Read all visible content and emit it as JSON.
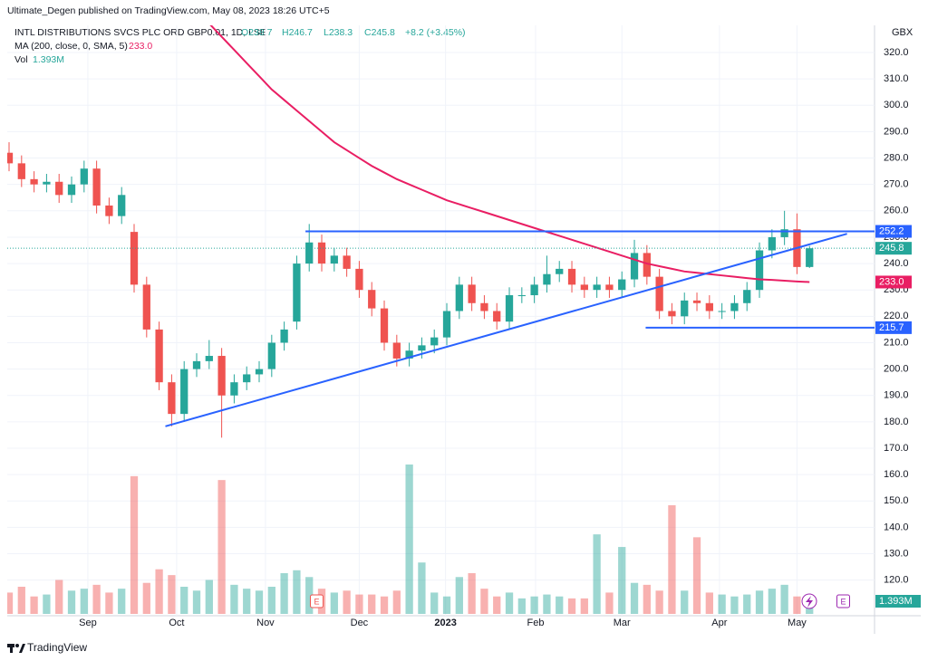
{
  "header": {
    "published": "Ultimate_Degen published on TradingView.com, May 08, 2023 18:26 UTC+5",
    "symbol": "INTL DISTRIBUTIONS SVCS PLC ORD GBP0.01, 1D, LSE",
    "ohlc": [
      "O238.7",
      "H246.7",
      "L238.3",
      "C245.8",
      "+8.2 (+3.45%)"
    ],
    "currency": "GBX",
    "footer": "TradingView"
  },
  "chart_data": {
    "type": "candlestick",
    "x": [
      0,
      1,
      2,
      3,
      4,
      5,
      6,
      7,
      8,
      9,
      10,
      11,
      12,
      13,
      14,
      15,
      16,
      17,
      18,
      19,
      20,
      21,
      22,
      23,
      24,
      25,
      26,
      27,
      28,
      29,
      30,
      31,
      32,
      33,
      34,
      35,
      36,
      37,
      38,
      39,
      40,
      41,
      42,
      43,
      44,
      45,
      46,
      47,
      48,
      49,
      50,
      51,
      52,
      53,
      54,
      55,
      56,
      57,
      58,
      59,
      60,
      61,
      62,
      63,
      64
    ],
    "open": [
      282,
      278,
      272,
      270,
      271,
      266,
      270,
      276,
      262,
      258,
      252,
      232,
      215,
      195,
      183,
      200,
      203,
      205,
      190,
      195,
      198,
      200,
      210,
      218,
      240,
      248,
      240,
      243,
      238,
      230,
      223,
      210,
      204,
      207,
      209,
      212,
      222,
      232,
      225,
      222,
      218,
      228,
      228,
      232,
      236,
      238,
      232,
      230,
      232,
      230,
      234,
      244,
      235,
      222,
      220,
      226,
      225,
      222,
      222,
      225,
      230,
      245,
      250,
      253,
      238.7
    ],
    "high": [
      286,
      281,
      275,
      274,
      274,
      273,
      279,
      279,
      265,
      269,
      255,
      235,
      218,
      198,
      203,
      206,
      211,
      208,
      198,
      201,
      203,
      213,
      218,
      243,
      255,
      251,
      246,
      246,
      241,
      233,
      226,
      213,
      210,
      212,
      215,
      225,
      235,
      235,
      228,
      225,
      231,
      231,
      235,
      243,
      241,
      241,
      235,
      235,
      235,
      237,
      249,
      247,
      238,
      225,
      229,
      229,
      228,
      225,
      228,
      233,
      248,
      253,
      260,
      259,
      246.7
    ],
    "low": [
      275,
      269,
      267,
      267,
      263,
      263,
      267,
      259,
      255,
      255,
      229,
      212,
      192,
      178.3,
      180,
      197,
      200,
      174,
      187,
      192,
      195,
      197,
      207,
      215,
      237,
      237,
      237,
      235,
      227,
      220,
      207,
      201,
      201,
      204,
      206,
      209,
      219,
      222,
      219,
      215,
      215,
      225,
      225,
      229,
      233,
      229,
      227,
      227,
      227,
      227,
      231,
      232,
      219,
      217,
      217,
      222,
      219,
      219,
      219,
      222,
      227,
      242,
      247,
      236,
      238.3
    ],
    "close": [
      278,
      272,
      270,
      271,
      266,
      270,
      276,
      262,
      258,
      266,
      232,
      215,
      195,
      183,
      200,
      203,
      205,
      190,
      195,
      198,
      200,
      210,
      215,
      240,
      248,
      240,
      243,
      238,
      230,
      223,
      210,
      204,
      207,
      209,
      212,
      222,
      232,
      225,
      222,
      218,
      228,
      228,
      232,
      236,
      238,
      232,
      230,
      232,
      230,
      234,
      244,
      235,
      222,
      220,
      226,
      225,
      222,
      222,
      225,
      230,
      245,
      250,
      253,
      238.7,
      245.8
    ],
    "volume_name": "Vol",
    "volume": [
      2.2,
      2.8,
      1.8,
      2.0,
      3.5,
      2.4,
      2.6,
      3.0,
      2.2,
      2.6,
      14.2,
      3.2,
      4.6,
      4.0,
      2.8,
      2.4,
      3.5,
      13.8,
      3.0,
      2.6,
      2.4,
      2.8,
      4.2,
      4.5,
      3.8,
      2.6,
      2.2,
      2.4,
      2.0,
      2.0,
      1.8,
      2.4,
      15.4,
      5.3,
      2.2,
      1.8,
      3.8,
      4.2,
      2.6,
      1.8,
      2.2,
      1.6,
      1.8,
      2.0,
      1.8,
      1.6,
      1.6,
      8.2,
      2.2,
      6.9,
      3.2,
      3.0,
      2.4,
      11.2,
      2.4,
      7.9,
      2.2,
      2.0,
      1.8,
      2.0,
      2.4,
      2.6,
      3.0,
      1.8,
      1.393
    ],
    "volume_last_label": "1.393M",
    "up_color": "#26a69a",
    "down_color": "#ef5350",
    "ma": {
      "name": "MA (200, close, 0, SMA, 5)",
      "color": "#e91e63",
      "values": [
        null,
        null,
        null,
        null,
        null,
        null,
        null,
        null,
        null,
        null,
        null,
        null,
        null,
        null,
        null,
        null,
        331,
        326,
        321,
        316,
        311,
        306,
        302,
        298,
        294,
        290,
        286,
        283,
        280,
        277,
        274.5,
        272,
        270,
        268,
        266,
        264,
        262.5,
        261,
        259.5,
        258,
        256.5,
        255,
        253.5,
        252,
        250.5,
        249,
        247.5,
        246,
        244.5,
        243,
        241.5,
        240,
        239,
        238,
        237,
        236.5,
        236,
        235.5,
        235,
        234.5,
        234,
        233.8,
        233.5,
        233.2,
        233
      ]
    },
    "trendlines": [
      {
        "color": "#2962ff",
        "points": [
          [
            12.5,
            178.3
          ],
          [
            67.0,
            251.3
          ]
        ]
      },
      {
        "color": "#2962ff",
        "points": [
          [
            23.7,
            252.2
          ],
          [
            69.2,
            252.2
          ]
        ]
      },
      {
        "color": "#2962ff",
        "points": [
          [
            50.9,
            215.7
          ],
          [
            69.2,
            215.7
          ]
        ]
      }
    ],
    "price_labels": [
      {
        "value": 252.2,
        "color": "#2962ff"
      },
      {
        "value": 245.8,
        "color": "#26a69a"
      },
      {
        "value": 233,
        "label": "233.0",
        "color": "#e91e63"
      },
      {
        "value": 215.7,
        "color": "#2962ff"
      }
    ],
    "events": [
      {
        "x": 24.6,
        "label": "E"
      },
      {
        "x": 66.7,
        "label": "E"
      }
    ],
    "xlim": [
      -0.145,
      69.2
    ],
    "xticks": [
      {
        "value": 6.3,
        "label": "Sep"
      },
      {
        "value": 13.4,
        "label": "Oct"
      },
      {
        "value": 20.5,
        "label": "Nov"
      },
      {
        "value": 28.0,
        "label": "Dec"
      },
      {
        "value": 34.9,
        "label": "2023"
      },
      {
        "value": 42.1,
        "label": "Feb"
      },
      {
        "value": 49.0,
        "label": "Mar"
      },
      {
        "value": 56.8,
        "label": "Apr"
      },
      {
        "value": 63.0,
        "label": "May"
      }
    ],
    "ylim": [
      106.5,
      330.3
    ],
    "yticks": [
      {
        "value": 120,
        "label": "120.0"
      },
      {
        "value": 130,
        "label": "130.0"
      },
      {
        "value": 140,
        "label": "140.0"
      },
      {
        "value": 150,
        "label": "150.0"
      },
      {
        "value": 160,
        "label": "160.0"
      },
      {
        "value": 170,
        "label": "170.0"
      },
      {
        "value": 180,
        "label": "180.0"
      },
      {
        "value": 190,
        "label": "190.0"
      },
      {
        "value": 200,
        "label": "200.0"
      },
      {
        "value": 210,
        "label": "210.0"
      },
      {
        "value": 220,
        "label": "220.0"
      },
      {
        "value": 230,
        "label": "230.0"
      },
      {
        "value": 240,
        "label": "240.0"
      },
      {
        "value": 250,
        "label": "250.0"
      },
      {
        "value": 260,
        "label": "260.0"
      },
      {
        "value": 270,
        "label": "270.0"
      },
      {
        "value": 280,
        "label": "280.0"
      },
      {
        "value": 290,
        "label": "290.0"
      },
      {
        "value": 300,
        "label": "300.0"
      },
      {
        "value": 310,
        "label": "310.0"
      },
      {
        "value": 320,
        "label": "320.0"
      }
    ],
    "grid": true
  }
}
